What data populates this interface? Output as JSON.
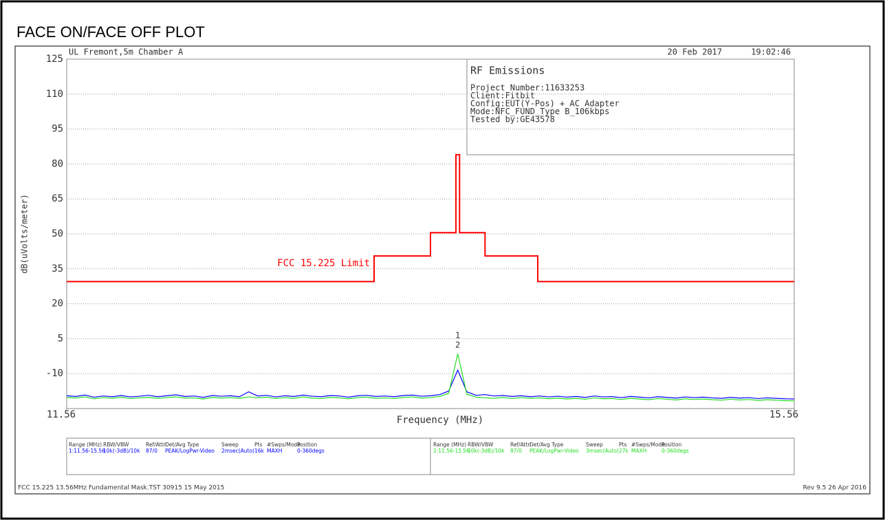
{
  "chart_data": {
    "type": "line",
    "title": "FACE ON/FACE OFF PLOT",
    "header": {
      "site": "UL Fremont,5m Chamber A",
      "date": "20 Feb 2017",
      "time": "19:02:46"
    },
    "info_box": {
      "title": "RF Emissions",
      "lines": [
        "Project Number:11633253",
        "Client:Fitbit",
        "Config:EUT(Y-Pos) + AC Adapter",
        "Mode:NFC_FUND_Type B_106kbps",
        "Tested by:GE43578"
      ]
    },
    "x_label": "Frequency (MHz)",
    "y_label": "dB(uVolts/meter)",
    "xlim": [
      11.56,
      15.56
    ],
    "xticks": [
      11.56,
      15.56
    ],
    "ylim": [
      -25,
      125
    ],
    "yticks": [
      125,
      110,
      95,
      80,
      65,
      50,
      35,
      20,
      5,
      -10
    ],
    "grid": true,
    "series": [
      {
        "name": "FCC 15.225 Limit",
        "color": "#ff0000",
        "x": [
          11.56,
          13.25,
          13.25,
          13.56,
          13.56,
          13.7,
          13.7,
          13.72,
          13.72,
          13.86,
          13.86,
          14.15,
          14.15,
          15.56
        ],
        "values": [
          29.5,
          29.5,
          40.5,
          40.5,
          50.5,
          50.5,
          84,
          84,
          50.5,
          50.5,
          40.5,
          40.5,
          29.5,
          29.5
        ]
      },
      {
        "color": "#0000ff",
        "x": [
          11.56,
          11.61,
          11.66,
          11.71,
          11.76,
          11.81,
          11.86,
          11.91,
          11.96,
          12.01,
          12.06,
          12.11,
          12.16,
          12.21,
          12.26,
          12.31,
          12.36,
          12.41,
          12.46,
          12.51,
          12.56,
          12.61,
          12.66,
          12.71,
          12.76,
          12.81,
          12.86,
          12.91,
          12.96,
          13.01,
          13.06,
          13.11,
          13.16,
          13.21,
          13.26,
          13.31,
          13.36,
          13.41,
          13.46,
          13.51,
          13.56,
          13.61,
          13.66,
          13.71,
          13.76,
          13.81,
          13.86,
          13.91,
          13.96,
          14.01,
          14.06,
          14.11,
          14.16,
          14.21,
          14.26,
          14.31,
          14.36,
          14.41,
          14.46,
          14.51,
          14.56,
          14.61,
          14.66,
          14.71,
          14.76,
          14.81,
          14.86,
          14.91,
          14.96,
          15.01,
          15.06,
          15.11,
          15.16,
          15.21,
          15.26,
          15.31,
          15.36,
          15.41,
          15.46,
          15.51,
          15.56
        ],
        "values": [
          -19.5,
          -19.8,
          -19.2,
          -20.1,
          -19.6,
          -19.9,
          -19.4,
          -20.0,
          -19.7,
          -19.3,
          -19.9,
          -19.5,
          -19.1,
          -19.8,
          -19.6,
          -20.2,
          -19.4,
          -19.7,
          -19.5,
          -19.9,
          -17.8,
          -19.6,
          -19.3,
          -20.0,
          -19.5,
          -19.8,
          -19.2,
          -19.7,
          -19.9,
          -19.4,
          -19.6,
          -20.1,
          -19.5,
          -19.3,
          -19.8,
          -19.6,
          -19.9,
          -19.4,
          -19.2,
          -19.7,
          -19.5,
          -19.0,
          -17.5,
          -8.5,
          -17.8,
          -19.3,
          -19.0,
          -19.6,
          -19.4,
          -19.8,
          -19.5,
          -19.9,
          -19.6,
          -20.0,
          -19.7,
          -20.1,
          -19.8,
          -20.2,
          -19.6,
          -20.0,
          -19.9,
          -20.3,
          -19.8,
          -20.1,
          -20.4,
          -19.9,
          -20.2,
          -20.5,
          -20.0,
          -20.3,
          -20.1,
          -20.4,
          -20.6,
          -20.2,
          -20.5,
          -20.3,
          -20.7,
          -20.4,
          -20.6,
          -20.8,
          -20.9
        ]
      },
      {
        "color": "#22dd22",
        "x": [
          11.56,
          11.61,
          11.66,
          11.71,
          11.76,
          11.81,
          11.86,
          11.91,
          11.96,
          12.01,
          12.06,
          12.11,
          12.16,
          12.21,
          12.26,
          12.31,
          12.36,
          12.41,
          12.46,
          12.51,
          12.56,
          12.61,
          12.66,
          12.71,
          12.76,
          12.81,
          12.86,
          12.91,
          12.96,
          13.01,
          13.06,
          13.11,
          13.16,
          13.21,
          13.26,
          13.31,
          13.36,
          13.41,
          13.46,
          13.51,
          13.56,
          13.61,
          13.66,
          13.71,
          13.76,
          13.81,
          13.86,
          13.91,
          13.96,
          14.01,
          14.06,
          14.11,
          14.16,
          14.21,
          14.26,
          14.31,
          14.36,
          14.41,
          14.46,
          14.51,
          14.56,
          14.61,
          14.66,
          14.71,
          14.76,
          14.81,
          14.86,
          14.91,
          14.96,
          15.01,
          15.06,
          15.11,
          15.16,
          15.21,
          15.26,
          15.31,
          15.36,
          15.41,
          15.46,
          15.51,
          15.56
        ],
        "values": [
          -20.2,
          -20.5,
          -20.0,
          -20.8,
          -20.3,
          -20.6,
          -20.1,
          -20.7,
          -20.4,
          -20.2,
          -20.6,
          -20.3,
          -20.0,
          -20.5,
          -20.4,
          -20.9,
          -20.2,
          -20.5,
          -20.3,
          -20.6,
          -20.0,
          -20.4,
          -20.1,
          -20.7,
          -20.3,
          -20.6,
          -20.0,
          -20.5,
          -20.7,
          -20.2,
          -20.4,
          -20.8,
          -20.3,
          -20.1,
          -20.6,
          -20.4,
          -20.7,
          -20.2,
          -20.0,
          -20.5,
          -20.3,
          -19.8,
          -18.5,
          -1.5,
          -18.8,
          -20.1,
          -20.4,
          -20.6,
          -20.2,
          -20.7,
          -20.3,
          -20.6,
          -20.4,
          -20.8,
          -20.5,
          -20.9,
          -20.6,
          -21.0,
          -20.4,
          -20.8,
          -20.7,
          -21.1,
          -20.6,
          -20.9,
          -21.2,
          -20.7,
          -21.0,
          -21.3,
          -20.8,
          -21.1,
          -20.9,
          -21.2,
          -21.4,
          -21.0,
          -21.3,
          -21.1,
          -21.5,
          -21.2,
          -21.4,
          -21.6,
          -21.7
        ]
      }
    ],
    "markers": [
      {
        "label": "1",
        "x": 13.71
      },
      {
        "label": "2",
        "x": 13.71
      }
    ]
  },
  "settings_table": {
    "headers": [
      "Range (MHz)",
      "RBW/VBW",
      "Ref/Attn",
      "Det/Avg Type",
      "Sweep",
      "Pts",
      "#Swps/Mode",
      "Position"
    ],
    "rows": [
      [
        "1:11.56-15.56",
        "10k(-3dB)/10k",
        "87/0",
        "PEAK/LogPwr-Video",
        "2msec(Auto)",
        "16k",
        "MAXH",
        "0-360degs"
      ],
      [
        "2:11.56-15.56",
        "10k(-3dB)/10k",
        "87/0",
        "PEAK/LogPwr-Video",
        "3msec(Auto)",
        "27k",
        "MAXH",
        "0-360degs"
      ]
    ]
  },
  "footer": {
    "left": "FCC 15.225 13.56MHz Fundamental Mask.TST 30915 15 May 2015",
    "right": "Rev 9.5 26 Apr 2016"
  }
}
